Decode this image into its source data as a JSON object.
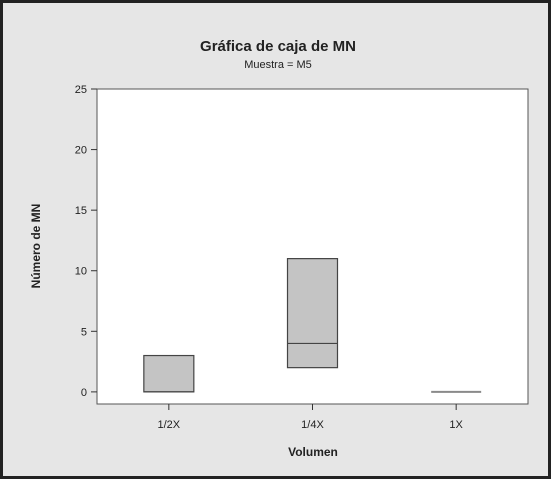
{
  "chart_data": {
    "type": "box",
    "title": "Gráfica de caja de MN",
    "subtitle": "Muestra = M5",
    "xlabel": "Volumen",
    "ylabel": "Número de MN",
    "ylim": [
      -1,
      25
    ],
    "yticks": [
      0,
      5,
      10,
      15,
      20,
      25
    ],
    "grid": false,
    "categories": [
      "1/2X",
      "1/4X",
      "1X"
    ],
    "boxes": [
      {
        "category": "1/2X",
        "min": 0,
        "q1": 0,
        "median": 0,
        "q3": 3,
        "max": 3
      },
      {
        "category": "1/4X",
        "min": 2,
        "q1": 2,
        "median": 4,
        "q3": 11,
        "max": 11
      },
      {
        "category": "1X",
        "min": 0,
        "q1": 0,
        "median": 0,
        "q3": 0,
        "max": 0
      }
    ],
    "colors": {
      "outer_background": "#e6e6e6",
      "plot_background": "#ffffff",
      "box_fill": "#c4c4c4",
      "box_stroke": "#444444",
      "frame": "#222222"
    }
  }
}
